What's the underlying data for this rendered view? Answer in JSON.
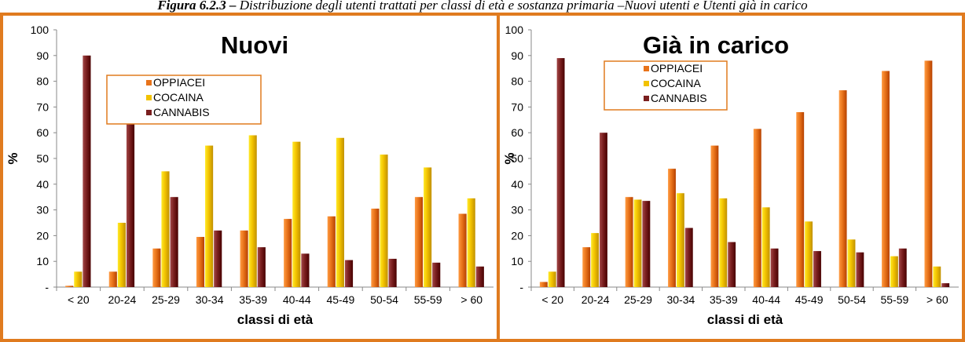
{
  "caption": {
    "prefix": "Figura 6.2.3 – ",
    "text": "Distribuzione degli utenti trattati per classi di età e sostanza primaria –Nuovi utenti e Utenti già in carico"
  },
  "colors": {
    "OPPIACEI": "#E8731A",
    "COCAINA": "#F2C200",
    "CANNABIS": "#7A1F1F",
    "border": "#E07B1F"
  },
  "chart_data": [
    {
      "type": "bar",
      "title": "Nuovi",
      "xlabel": "classi di età",
      "ylabel": "%",
      "ylim": [
        0,
        100
      ],
      "yticks": [
        "-",
        "10",
        "20",
        "30",
        "40",
        "50",
        "60",
        "70",
        "80",
        "90",
        "100"
      ],
      "categories": [
        "< 20",
        "20-24",
        "25-29",
        "30-34",
        "35-39",
        "40-44",
        "45-49",
        "50-54",
        "55-59",
        "> 60"
      ],
      "legend": "top-left",
      "series": [
        {
          "name": "OPPIACEI",
          "values": [
            0.5,
            6,
            15,
            19.5,
            22,
            26.5,
            27.5,
            30.5,
            35,
            28.5
          ]
        },
        {
          "name": "COCAINA",
          "values": [
            6,
            25,
            45,
            55,
            59,
            56.5,
            58,
            51.5,
            46.5,
            34.5
          ]
        },
        {
          "name": "CANNABIS",
          "values": [
            90,
            64,
            35,
            22,
            15.5,
            13,
            10.5,
            11,
            9.5,
            8
          ]
        }
      ]
    },
    {
      "type": "bar",
      "title": "Già in carico",
      "xlabel": "classi di età",
      "ylabel": "%",
      "ylim": [
        0,
        100
      ],
      "yticks": [
        "-",
        "10",
        "20",
        "30",
        "40",
        "50",
        "60",
        "70",
        "80",
        "90",
        "100"
      ],
      "categories": [
        "< 20",
        "20-24",
        "25-29",
        "30-34",
        "35-39",
        "40-44",
        "45-49",
        "50-54",
        "55-59",
        "> 60"
      ],
      "legend": "top-left",
      "series": [
        {
          "name": "OPPIACEI",
          "values": [
            2,
            15.5,
            35,
            46,
            55,
            61.5,
            68,
            76.5,
            84,
            88
          ]
        },
        {
          "name": "COCAINA",
          "values": [
            6,
            21,
            34,
            36.5,
            34.5,
            31,
            25.5,
            18.5,
            12,
            8
          ]
        },
        {
          "name": "CANNABIS",
          "values": [
            89,
            60,
            33.5,
            23,
            17.5,
            15,
            14,
            13.5,
            15,
            1.5
          ]
        }
      ]
    }
  ]
}
